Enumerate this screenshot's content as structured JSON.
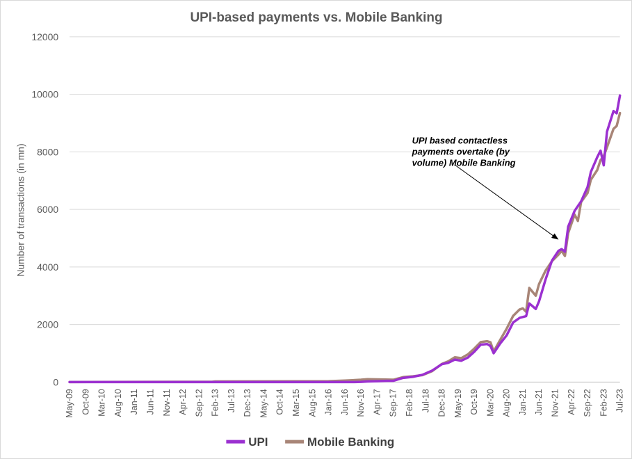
{
  "chart_data": {
    "type": "line",
    "title": "UPI-based payments vs. Mobile Banking",
    "xlabel": "",
    "ylabel": "Number of transactions  (in mn)",
    "ylim": [
      0,
      12000
    ],
    "yticks": [
      0,
      2000,
      4000,
      6000,
      8000,
      10000,
      12000
    ],
    "grid": true,
    "legend": "bottom",
    "x_tick_labels": [
      "May-09",
      "Oct-09",
      "Mar-10",
      "Aug-10",
      "Jan-11",
      "Jun-11",
      "Nov-11",
      "Apr-12",
      "Sep-12",
      "Feb-13",
      "Jul-13",
      "Dec-13",
      "May-14",
      "Oct-14",
      "Mar-15",
      "Aug-15",
      "Jan-16",
      "Jun-16",
      "Nov-16",
      "Apr-17",
      "Sep-17",
      "Feb-18",
      "Jul-18",
      "Dec-18",
      "May-19",
      "Oct-19",
      "Mar-20",
      "Aug-20",
      "Jan-21",
      "Jun-21",
      "Nov-21",
      "Apr-22",
      "Sep-22",
      "Feb-23",
      "Jul-23"
    ],
    "annotation": {
      "lines": [
        "UPI based contactless",
        "payments overtake (by",
        "volume) Mobile Banking"
      ],
      "points_to": "Feb-22"
    },
    "series": [
      {
        "name": "UPI",
        "color": "#9b30d0",
        "points": [
          [
            "May-09",
            0
          ],
          [
            "Sep-16",
            0
          ],
          [
            "Nov-16",
            5
          ],
          [
            "Jan-17",
            20
          ],
          [
            "Apr-17",
            30
          ],
          [
            "Jul-17",
            40
          ],
          [
            "Sep-17",
            40
          ],
          [
            "Dec-17",
            145
          ],
          [
            "Mar-18",
            180
          ],
          [
            "Jun-18",
            250
          ],
          [
            "Sep-18",
            400
          ],
          [
            "Dec-18",
            620
          ],
          [
            "Feb-19",
            670
          ],
          [
            "Apr-19",
            780
          ],
          [
            "Jun-19",
            740
          ],
          [
            "Aug-19",
            850
          ],
          [
            "Oct-19",
            1050
          ],
          [
            "Dec-19",
            1300
          ],
          [
            "Feb-20",
            1320
          ],
          [
            "Mar-20",
            1250
          ],
          [
            "Apr-20",
            1000
          ],
          [
            "Jun-20",
            1340
          ],
          [
            "Aug-20",
            1620
          ],
          [
            "Oct-20",
            2070
          ],
          [
            "Dec-20",
            2230
          ],
          [
            "Feb-21",
            2290
          ],
          [
            "Mar-21",
            2730
          ],
          [
            "May-21",
            2540
          ],
          [
            "Jun-21",
            2800
          ],
          [
            "Aug-21",
            3560
          ],
          [
            "Oct-21",
            4220
          ],
          [
            "Dec-21",
            4560
          ],
          [
            "Jan-22",
            4620
          ],
          [
            "Feb-22",
            4530
          ],
          [
            "Mar-22",
            5400
          ],
          [
            "May-22",
            5950
          ],
          [
            "Jul-22",
            6280
          ],
          [
            "Sep-22",
            6780
          ],
          [
            "Oct-22",
            7300
          ],
          [
            "Dec-22",
            7820
          ],
          [
            "Jan-23",
            8040
          ],
          [
            "Feb-23",
            7530
          ],
          [
            "Mar-23",
            8700
          ],
          [
            "May-23",
            9420
          ],
          [
            "Jun-23",
            9340
          ],
          [
            "Jul-23",
            9960
          ]
        ]
      },
      {
        "name": "Mobile Banking",
        "color": "#a88577",
        "points": [
          [
            "May-09",
            0
          ],
          [
            "Jan-13",
            10
          ],
          [
            "Feb-13",
            20
          ],
          [
            "Jan-16",
            30
          ],
          [
            "Jun-16",
            50
          ],
          [
            "Nov-16",
            80
          ],
          [
            "Jan-17",
            100
          ],
          [
            "Apr-17",
            95
          ],
          [
            "Sep-17",
            80
          ],
          [
            "Dec-17",
            170
          ],
          [
            "Mar-18",
            200
          ],
          [
            "Jun-18",
            240
          ],
          [
            "Sep-18",
            380
          ],
          [
            "Dec-18",
            630
          ],
          [
            "Feb-19",
            720
          ],
          [
            "Apr-19",
            860
          ],
          [
            "Jun-19",
            830
          ],
          [
            "Aug-19",
            960
          ],
          [
            "Oct-19",
            1160
          ],
          [
            "Dec-19",
            1390
          ],
          [
            "Feb-20",
            1420
          ],
          [
            "Mar-20",
            1380
          ],
          [
            "Apr-20",
            1060
          ],
          [
            "Jun-20",
            1460
          ],
          [
            "Aug-20",
            1850
          ],
          [
            "Oct-20",
            2300
          ],
          [
            "Dec-20",
            2520
          ],
          [
            "Jan-21",
            2560
          ],
          [
            "Feb-21",
            2440
          ],
          [
            "Mar-21",
            3270
          ],
          [
            "May-21",
            3000
          ],
          [
            "Jun-21",
            3400
          ],
          [
            "Aug-21",
            3870
          ],
          [
            "Oct-21",
            4200
          ],
          [
            "Dec-21",
            4430
          ],
          [
            "Jan-22",
            4560
          ],
          [
            "Feb-22",
            4380
          ],
          [
            "Mar-22",
            5180
          ],
          [
            "May-22",
            5820
          ],
          [
            "Jun-22",
            5600
          ],
          [
            "Jul-22",
            6260
          ],
          [
            "Sep-22",
            6570
          ],
          [
            "Oct-22",
            7030
          ],
          [
            "Dec-22",
            7370
          ],
          [
            "Jan-23",
            7710
          ],
          [
            "Feb-23",
            7850
          ],
          [
            "Mar-23",
            8160
          ],
          [
            "May-23",
            8800
          ],
          [
            "Jun-23",
            8900
          ],
          [
            "Jul-23",
            9350
          ]
        ]
      }
    ]
  }
}
